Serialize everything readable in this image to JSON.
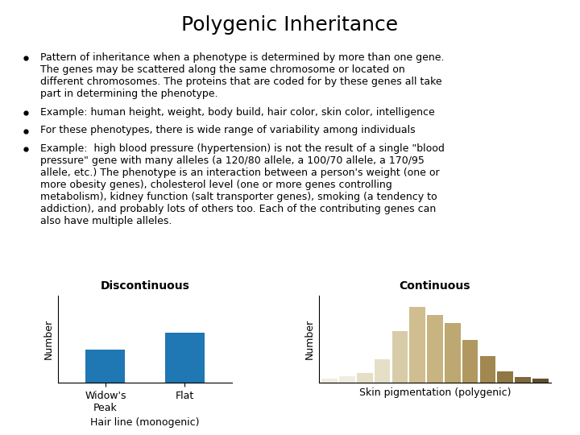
{
  "title": "Polygenic Inheritance",
  "annotations": [
    "Pattern of inheritance when a phenotype is determined by more than one gene.\nThe genes may be scattered along the same chromosome or located on\ndifferent chromosomes. The proteins that are coded for by these genes all take\npart in determining the phenotype.",
    "Example: human height, weight, body build, hair color, skin color, intelligence",
    "For these phenotypes, there is wide range of variability among individuals",
    "Example:  high blood pressure (hypertension) is not the result of a single \"blood\npressure\" gene with many alleles (a 120/80 allele, a 100/70 allele, a 170/95\nallele, etc.) The phenotype is an interaction between a person's weight (one or\nmore obesity genes), cholesterol level (one or more genes controlling\nmetabolism), kidney function (salt transporter genes), smoking (a tendency to\naddiction), and probably lots of others too. Each of the contributing genes can\nalso have multiple alleles."
  ],
  "chart_data": [
    {
      "type": "bar",
      "title": "Discontinuous",
      "xlabel": "Hair line (monogenic)",
      "ylabel": "Number",
      "categories": [
        "Widow's\nPeak",
        "Flat"
      ],
      "values": [
        0.38,
        0.58
      ],
      "ylim": [
        0,
        1.0
      ],
      "tick_labels": "x"
    },
    {
      "type": "bar",
      "title": "Continuous",
      "xlabel": "Skin pigmentation (polygenic)",
      "ylabel": "Number",
      "categories": [
        null,
        null,
        null,
        null,
        null,
        null,
        null,
        null,
        null,
        null,
        null,
        null,
        null
      ],
      "values": [
        0.05,
        0.08,
        0.12,
        0.28,
        0.62,
        0.92,
        0.82,
        0.72,
        0.52,
        0.32,
        0.14,
        0.07,
        0.05
      ],
      "colors": [
        "#f0ede0",
        "#f0ede0",
        "#e5dfc8",
        "#e5dfc8",
        "#d8cca8",
        "#d0be90",
        "#c8b480",
        "#bca870",
        "#b09860",
        "#a08850",
        "#907845",
        "#80683c",
        "#605030"
      ],
      "ylim": [
        0,
        1.05
      ],
      "tick_labels": false
    }
  ]
}
